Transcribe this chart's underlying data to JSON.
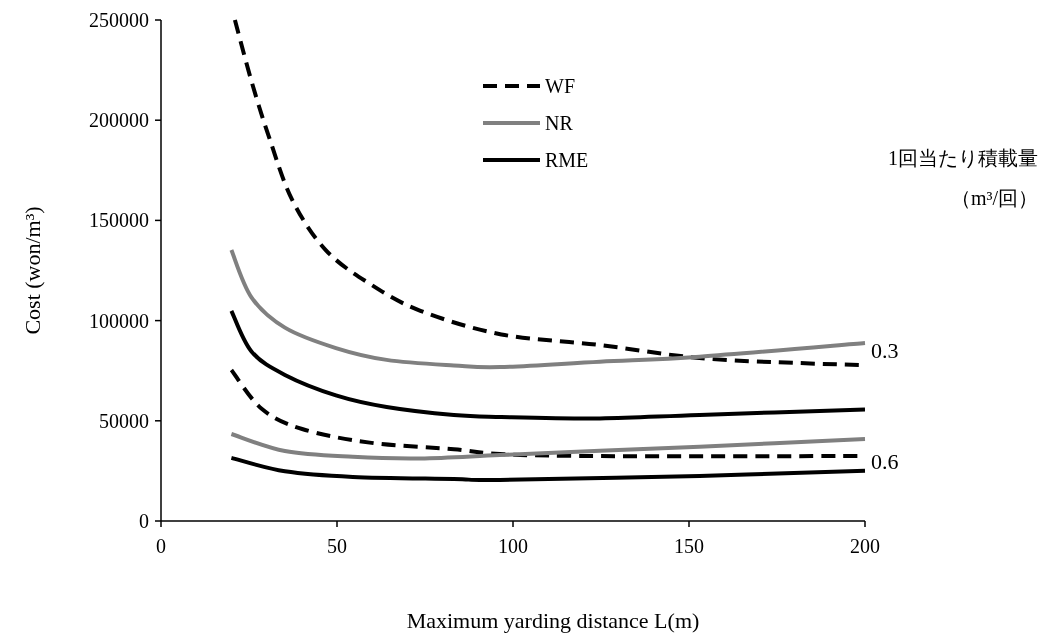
{
  "chart_data": {
    "type": "line",
    "xlabel": "Maximum yarding distance L(m)",
    "ylabel": "Cost (won/m³)",
    "xlim": [
      0,
      200
    ],
    "xticks": [
      0,
      50,
      100,
      150,
      200
    ],
    "ylim": [
      0,
      250000
    ],
    "yticks": [
      0,
      50000,
      100000,
      150000,
      200000,
      250000
    ],
    "grid": false,
    "legend": "top right",
    "marker": "none",
    "series": [
      {
        "name": "WF",
        "color": "#000000",
        "line_style": "dashed",
        "x": [
          21,
          25.7,
          30.5,
          37.2,
          46.8,
          59.3,
          73.7,
          96.7,
          124.7,
          153,
          181.6,
          200
        ],
        "values": [
          250000,
          219500,
          192600,
          160500,
          135200,
          118400,
          104900,
          93100,
          87800,
          81300,
          78800,
          77800
        ]
      },
      {
        "name": "NR",
        "color": "#808080",
        "line_style": "solid",
        "x": [
          20,
          25.7,
          35.2,
          49.7,
          64.1,
          83.2,
          96.3,
          124.7,
          153,
          200
        ],
        "values": [
          135200,
          111600,
          96500,
          86300,
          80400,
          77600,
          76800,
          79500,
          82000,
          88800
        ]
      },
      {
        "name": "RME",
        "color": "#000000",
        "line_style": "solid",
        "x": [
          20,
          25.7,
          35.2,
          49.7,
          64.1,
          83.2,
          96.7,
          124.7,
          153,
          200
        ],
        "values": [
          104900,
          84600,
          72900,
          62700,
          56900,
          52900,
          51900,
          51200,
          52900,
          55700
        ]
      },
      {
        "color": "#000000",
        "line_style": "dashed",
        "x": [
          20,
          28.6,
          40.1,
          59.3,
          83.2,
          96.3,
          124.7,
          200
        ],
        "values": [
          75400,
          56000,
          45900,
          39100,
          35800,
          33400,
          32400,
          32400
        ]
      },
      {
        "color": "#808080",
        "line_style": "solid",
        "x": [
          20,
          35.2,
          54.5,
          73.7,
          96.3,
          124.7,
          153,
          200
        ],
        "values": [
          43400,
          34900,
          32000,
          31200,
          32900,
          35100,
          37100,
          40900
        ]
      },
      {
        "color": "#000000",
        "line_style": "solid",
        "x": [
          20,
          35.2,
          54.5,
          83.2,
          96.3,
          153,
          200
        ],
        "values": [
          31500,
          24800,
          22000,
          21000,
          20500,
          22500,
          25100
        ]
      }
    ],
    "annotations": [
      "0.3",
      "0.6",
      "1回当たり積載量",
      "（m³/回）"
    ]
  }
}
